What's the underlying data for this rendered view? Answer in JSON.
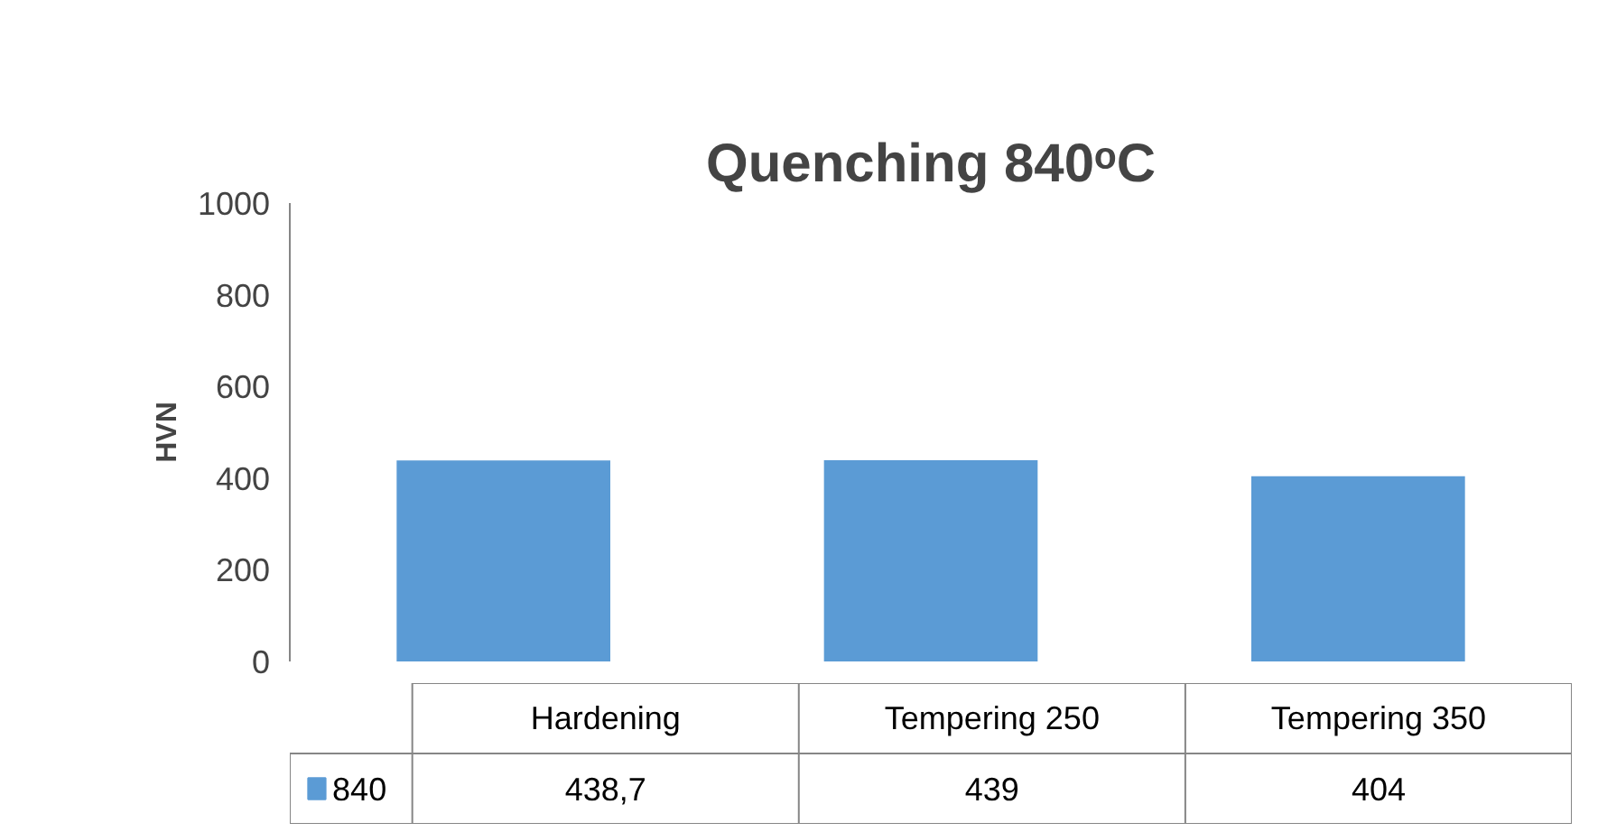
{
  "chart_data": {
    "type": "bar",
    "title": "Quenching 840ᵒC",
    "ylabel": "HVN",
    "categories": [
      "Hardening",
      "Tempering 250",
      "Tempering 350"
    ],
    "series": [
      {
        "name": "840",
        "color": "#5b9bd5",
        "values": [
          438.7,
          439,
          404
        ],
        "value_labels": [
          "438,7",
          "439",
          "404"
        ]
      }
    ],
    "ylim": [
      0,
      1000
    ],
    "yticks": [
      0,
      200,
      400,
      600,
      800,
      1000
    ],
    "grid": false
  }
}
